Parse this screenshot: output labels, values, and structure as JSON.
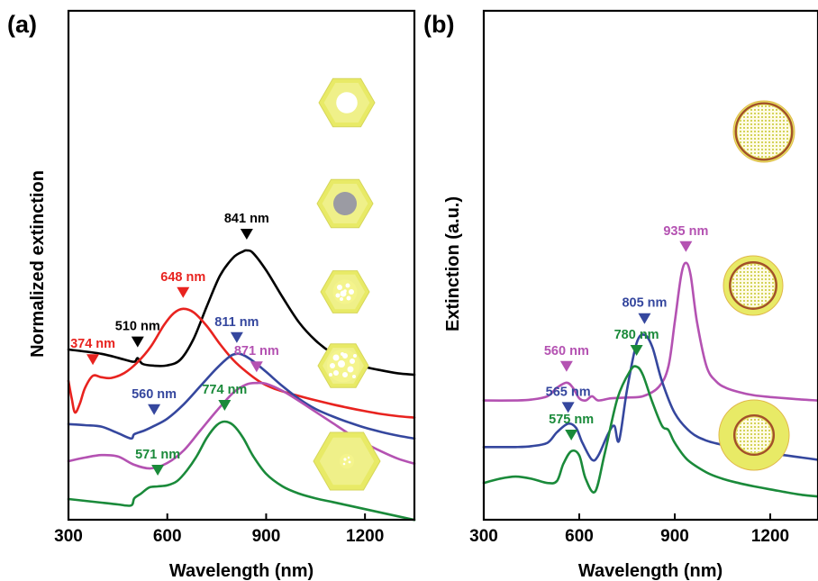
{
  "colors": {
    "black": "#000000",
    "red": "#e8231f",
    "blue": "#35479e",
    "magenta": "#b452b2",
    "green": "#1a8a3a",
    "gold": "#e8ea66",
    "goldLight": "#f4f4a6",
    "grayCore": "#9b9ba3",
    "shellBrown": "#a3502a"
  },
  "chart_data": [
    {
      "panel": "(a)",
      "type": "line",
      "xlabel": "Wavelength (nm)",
      "ylabel": "Normalized extinction",
      "xlim": [
        300,
        1350
      ],
      "xticks": [
        "300",
        "600",
        "900",
        "1200"
      ],
      "yticks_shown": false,
      "series": [
        {
          "color": "black",
          "inset": "hexagon-hole",
          "offset": 3.55,
          "x": [
            300,
            400,
            470,
            500,
            510,
            525,
            560,
            600,
            640,
            680,
            720,
            760,
            800,
            830,
            841,
            860,
            900,
            950,
            1000,
            1050,
            1100,
            1150,
            1200,
            1250,
            1300,
            1350
          ],
          "y": [
            1.0,
            0.88,
            0.72,
            0.66,
            0.76,
            0.6,
            0.55,
            0.56,
            0.72,
            1.3,
            2.2,
            3.05,
            3.55,
            3.72,
            3.75,
            3.68,
            3.2,
            2.45,
            1.75,
            1.25,
            0.9,
            0.68,
            0.52,
            0.42,
            0.34,
            0.3
          ],
          "peaks": [
            {
              "x": 510,
              "label": "510 nm"
            },
            {
              "x": 841,
              "label": "841 nm"
            }
          ]
        },
        {
          "color": "red",
          "inset": "hexagon-core",
          "offset": 2.48,
          "x": [
            300,
            310,
            320,
            335,
            350,
            374,
            400,
            430,
            470,
            510,
            550,
            590,
            620,
            648,
            680,
            720,
            760,
            800,
            840,
            880,
            920,
            960,
            1000,
            1050,
            1100,
            1150,
            1200,
            1250,
            1300,
            1350
          ],
          "y": [
            1.2,
            0.7,
            0.32,
            0.58,
            1.0,
            1.34,
            1.3,
            1.28,
            1.42,
            1.72,
            2.15,
            2.75,
            3.08,
            3.2,
            3.1,
            2.72,
            2.22,
            1.78,
            1.45,
            1.18,
            1.0,
            0.88,
            0.78,
            0.66,
            0.55,
            0.45,
            0.36,
            0.28,
            0.22,
            0.18
          ],
          "peaks": [
            {
              "x": 374,
              "label": "374 nm"
            },
            {
              "x": 648,
              "label": "648 nm"
            }
          ]
        },
        {
          "color": "blue",
          "inset": "hexagon-porous",
          "offset": 1.58,
          "x": [
            300,
            350,
            400,
            450,
            490,
            500,
            530,
            560,
            600,
            650,
            700,
            750,
            790,
            811,
            830,
            860,
            900,
            950,
            1000,
            1050,
            1100,
            1150,
            1200,
            1250,
            1300,
            1350
          ],
          "y": [
            0.9,
            0.87,
            0.83,
            0.65,
            0.5,
            0.62,
            0.72,
            0.85,
            1.05,
            1.45,
            1.95,
            2.45,
            2.78,
            2.85,
            2.82,
            2.65,
            2.35,
            1.95,
            1.6,
            1.32,
            1.12,
            0.95,
            0.8,
            0.68,
            0.58,
            0.5
          ],
          "peaks": [
            {
              "x": 560,
              "label": "560 nm"
            },
            {
              "x": 811,
              "label": "811 nm"
            }
          ]
        },
        {
          "color": "magenta",
          "inset": "hexagon-mesh",
          "offset": 0.8,
          "x": [
            300,
            350,
            400,
            450,
            500,
            550,
            600,
            650,
            700,
            750,
            800,
            840,
            871,
            900,
            950,
            1000,
            1050,
            1100,
            1150,
            1200,
            1250,
            1300,
            1350
          ],
          "y": [
            0.65,
            0.75,
            0.82,
            0.78,
            0.55,
            0.45,
            0.6,
            0.95,
            1.5,
            2.05,
            2.55,
            2.78,
            2.82,
            2.8,
            2.6,
            2.32,
            2.02,
            1.72,
            1.42,
            1.15,
            0.92,
            0.72,
            0.58
          ],
          "peaks": [
            {
              "x": 871,
              "label": "871 nm"
            }
          ]
        },
        {
          "color": "green",
          "inset": "hexagon-small-core",
          "offset": 0.0,
          "x": [
            300,
            350,
            400,
            450,
            490,
            500,
            520,
            545,
            571,
            600,
            630,
            660,
            690,
            720,
            750,
            774,
            800,
            830,
            860,
            900,
            950,
            1000,
            1050,
            1100,
            1150,
            1200,
            1250,
            1300,
            1350
          ],
          "y": [
            0.4,
            0.35,
            0.3,
            0.25,
            0.22,
            0.42,
            0.55,
            0.72,
            0.75,
            0.78,
            0.9,
            1.2,
            1.6,
            2.1,
            2.45,
            2.55,
            2.45,
            2.1,
            1.6,
            1.1,
            0.75,
            0.55,
            0.42,
            0.32,
            0.22,
            0.12,
            0.02,
            -0.08,
            -0.18
          ],
          "peaks": [
            {
              "x": 571,
              "label": "571 nm"
            },
            {
              "x": 774,
              "label": "774 nm"
            }
          ]
        }
      ]
    },
    {
      "panel": "(b)",
      "type": "line",
      "xlabel": "Wavelength (nm)",
      "ylabel": "Extinction (a.u.)",
      "xlim": [
        300,
        1350
      ],
      "xticks": [
        "300",
        "600",
        "900",
        "1200"
      ],
      "yticks_shown": false,
      "series": [
        {
          "color": "magenta",
          "inset": "disk-thin-shell",
          "offset": 2.35,
          "x": [
            300,
            400,
            450,
            500,
            530,
            560,
            580,
            600,
            620,
            640,
            660,
            700,
            750,
            800,
            850,
            880,
            900,
            920,
            935,
            950,
            970,
            1000,
            1030,
            1060,
            1100,
            1150,
            1200,
            1250,
            1300,
            1350
          ],
          "y": [
            0.0,
            0.0,
            0.02,
            0.1,
            0.3,
            0.42,
            0.3,
            0.05,
            0.0,
            0.1,
            0.0,
            0.05,
            0.07,
            0.1,
            0.32,
            0.8,
            1.85,
            2.95,
            3.25,
            2.95,
            1.85,
            0.8,
            0.45,
            0.3,
            0.2,
            0.12,
            0.08,
            0.05,
            0.02,
            0.0
          ],
          "peaks": [
            {
              "x": 560,
              "label": "560 nm"
            },
            {
              "x": 935,
              "label": "935 nm"
            }
          ]
        },
        {
          "color": "blue",
          "inset": "disk-medium-shell",
          "offset": 1.05,
          "x": [
            300,
            400,
            450,
            500,
            530,
            565,
            590,
            610,
            640,
            660,
            690,
            710,
            725,
            750,
            780,
            805,
            830,
            860,
            900,
            950,
            1000,
            1050,
            1100,
            1150,
            1200,
            1250,
            1300,
            1350
          ],
          "y": [
            0.2,
            0.2,
            0.22,
            0.3,
            0.55,
            0.75,
            0.65,
            0.3,
            -0.1,
            0.0,
            0.5,
            0.7,
            0.35,
            1.55,
            2.65,
            2.85,
            2.55,
            1.75,
            1.0,
            0.55,
            0.35,
            0.25,
            0.15,
            0.1,
            0.05,
            0.0,
            -0.05,
            -0.1
          ],
          "peaks": [
            {
              "x": 565,
              "label": "565 nm"
            },
            {
              "x": 805,
              "label": "805 nm"
            }
          ]
        },
        {
          "color": "green",
          "inset": "disk-thick-shell",
          "offset": 0.0,
          "x": [
            300,
            350,
            400,
            450,
            500,
            530,
            550,
            575,
            600,
            620,
            650,
            680,
            720,
            760,
            780,
            800,
            830,
            860,
            880,
            900,
            940,
            1000,
            1050,
            1100,
            1150,
            1200,
            1250,
            1300,
            1350
          ],
          "y": [
            0.4,
            0.5,
            0.55,
            0.5,
            0.4,
            0.45,
            0.85,
            1.15,
            1.05,
            0.5,
            0.2,
            1.1,
            2.4,
            3.05,
            3.15,
            2.95,
            2.3,
            1.75,
            1.65,
            1.35,
            0.95,
            0.65,
            0.5,
            0.4,
            0.32,
            0.25,
            0.18,
            0.12,
            0.08
          ],
          "peaks": [
            {
              "x": 575,
              "label": "575 nm"
            },
            {
              "x": 780,
              "label": "780 nm"
            }
          ]
        }
      ]
    }
  ]
}
